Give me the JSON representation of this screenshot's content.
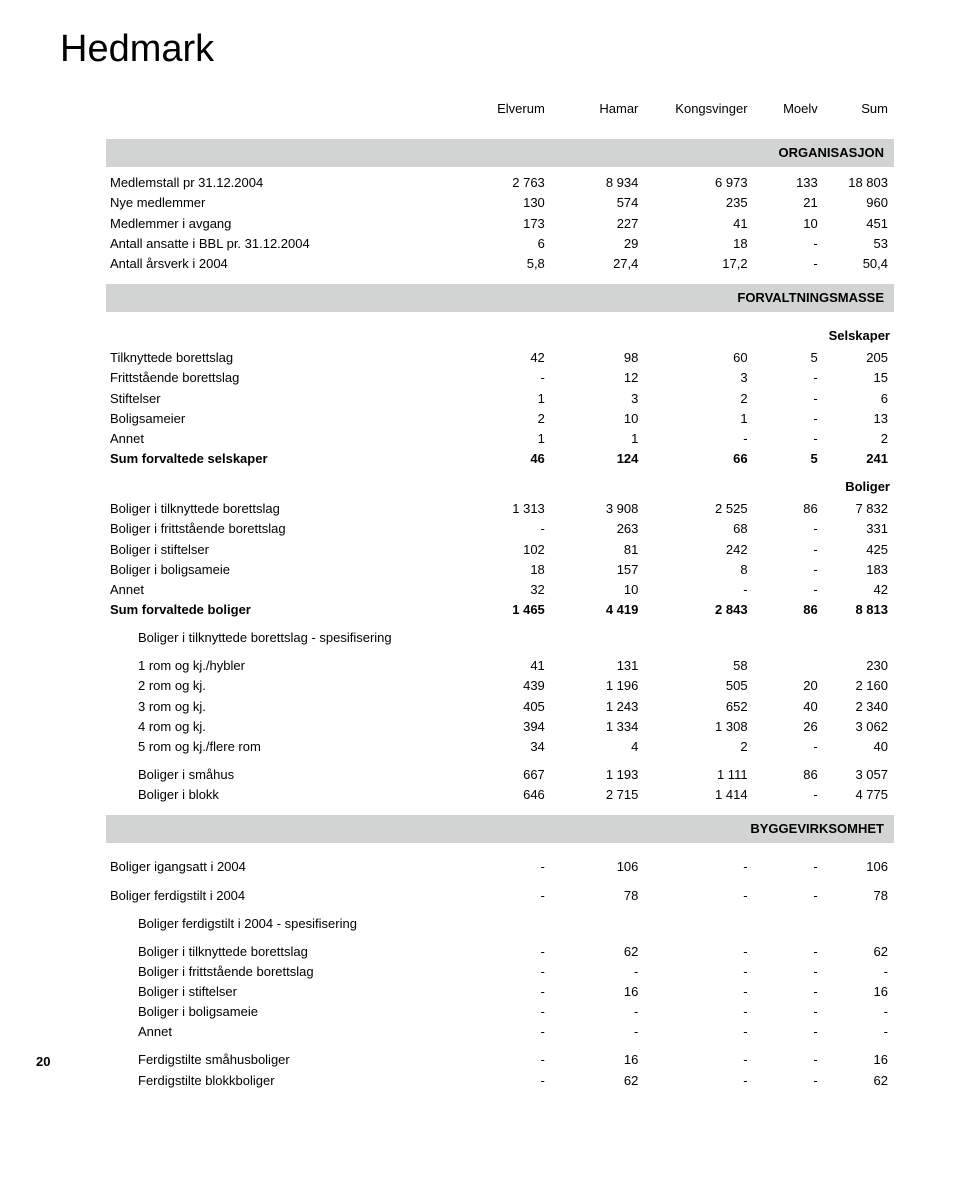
{
  "page_title": "Hedmark",
  "page_number": "20",
  "columns": [
    "Elverum",
    "Hamar",
    "Kongsvinger",
    "Moelv",
    "Sum"
  ],
  "sections": {
    "org": {
      "title": "ORGANISASJON"
    },
    "forv": {
      "title": "FORVALTNINGSMASSE"
    },
    "bygg": {
      "title": "BYGGEVIRKSOMHET"
    }
  },
  "sub": {
    "selskaper": "Selskaper",
    "boliger": "Boliger",
    "spes_tilk": "Boliger i tilknyttede borettslag - spesifisering",
    "spes_ferd": "Boliger ferdigstilt i 2004 - spesifisering"
  },
  "rows": {
    "medlemstall": {
      "l": "Medlemstall pr 31.12.2004",
      "v": [
        "2 763",
        "8 934",
        "6 973",
        "133",
        "18 803"
      ]
    },
    "nye_medl": {
      "l": "Nye medlemmer",
      "v": [
        "130",
        "574",
        "235",
        "21",
        "960"
      ]
    },
    "medl_avgang": {
      "l": "Medlemmer i avgang",
      "v": [
        "173",
        "227",
        "41",
        "10",
        "451"
      ]
    },
    "ansatte": {
      "l": "Antall ansatte i BBL pr. 31.12.2004",
      "v": [
        "6",
        "29",
        "18",
        "-",
        "53"
      ]
    },
    "arsverk": {
      "l": "Antall årsverk i 2004",
      "v": [
        "5,8",
        "27,4",
        "17,2",
        "-",
        "50,4"
      ]
    },
    "tilk_bl": {
      "l": "Tilknyttede borettslag",
      "v": [
        "42",
        "98",
        "60",
        "5",
        "205"
      ]
    },
    "fritt_bl": {
      "l": "Frittstående borettslag",
      "v": [
        "-",
        "12",
        "3",
        "-",
        "15"
      ]
    },
    "stift": {
      "l": "Stiftelser",
      "v": [
        "1",
        "3",
        "2",
        "-",
        "6"
      ]
    },
    "boligsameier": {
      "l": "Boligsameier",
      "v": [
        "2",
        "10",
        "1",
        "-",
        "13"
      ]
    },
    "annet_s": {
      "l": "Annet",
      "v": [
        "1",
        "1",
        "-",
        "-",
        "2"
      ]
    },
    "sum_selsk": {
      "l": "Sum forvaltede selskaper",
      "v": [
        "46",
        "124",
        "66",
        "5",
        "241"
      ]
    },
    "b_tilk": {
      "l": "Boliger i tilknyttede borettslag",
      "v": [
        "1 313",
        "3 908",
        "2 525",
        "86",
        "7 832"
      ]
    },
    "b_fritt": {
      "l": "Boliger i frittstående borettslag",
      "v": [
        "-",
        "263",
        "68",
        "-",
        "331"
      ]
    },
    "b_stift": {
      "l": "Boliger i stiftelser",
      "v": [
        "102",
        "81",
        "242",
        "-",
        "425"
      ]
    },
    "b_sameie": {
      "l": "Boliger i boligsameie",
      "v": [
        "18",
        "157",
        "8",
        "-",
        "183"
      ]
    },
    "b_annet": {
      "l": "Annet",
      "v": [
        "32",
        "10",
        "-",
        "-",
        "42"
      ]
    },
    "sum_boliger": {
      "l": "Sum forvaltede boliger",
      "v": [
        "1 465",
        "4 419",
        "2 843",
        "86",
        "8 813"
      ]
    },
    "r1": {
      "l": "1 rom og kj./hybler",
      "v": [
        "41",
        "131",
        "58",
        "",
        "230"
      ]
    },
    "r2": {
      "l": "2 rom og kj.",
      "v": [
        "439",
        "1 196",
        "505",
        "20",
        "2 160"
      ]
    },
    "r3": {
      "l": "3 rom og kj.",
      "v": [
        "405",
        "1 243",
        "652",
        "40",
        "2 340"
      ]
    },
    "r4": {
      "l": "4 rom og kj.",
      "v": [
        "394",
        "1 334",
        "1 308",
        "26",
        "3 062"
      ]
    },
    "r5": {
      "l": "5 rom og kj./flere rom",
      "v": [
        "34",
        "4",
        "2",
        "-",
        "40"
      ]
    },
    "smahus": {
      "l": "Boliger i småhus",
      "v": [
        "667",
        "1 193",
        "1 111",
        "86",
        "3 057"
      ]
    },
    "blokk": {
      "l": "Boliger i blokk",
      "v": [
        "646",
        "2 715",
        "1 414",
        "-",
        "4 775"
      ]
    },
    "igang": {
      "l": "Boliger igangsatt i 2004",
      "v": [
        "-",
        "106",
        "-",
        "-",
        "106"
      ]
    },
    "ferdig": {
      "l": "Boliger ferdigstilt i 2004",
      "v": [
        "-",
        "78",
        "-",
        "-",
        "78"
      ]
    },
    "f_tilk": {
      "l": "Boliger i tilknyttede borettslag",
      "v": [
        "-",
        "62",
        "-",
        "-",
        "62"
      ]
    },
    "f_fritt": {
      "l": "Boliger i frittstående borettslag",
      "v": [
        "-",
        "-",
        "-",
        "-",
        "-"
      ]
    },
    "f_stift": {
      "l": "Boliger i stiftelser",
      "v": [
        "-",
        "16",
        "-",
        "-",
        "16"
      ]
    },
    "f_sameie": {
      "l": "Boliger i boligsameie",
      "v": [
        "-",
        "-",
        "-",
        "-",
        "-"
      ]
    },
    "f_annet": {
      "l": "Annet",
      "v": [
        "-",
        "-",
        "-",
        "-",
        "-"
      ]
    },
    "f_smahus": {
      "l": "Ferdigstilte småhusboliger",
      "v": [
        "-",
        "16",
        "-",
        "-",
        "16"
      ]
    },
    "f_blokk": {
      "l": "Ferdigstilte blokkboliger",
      "v": [
        "-",
        "62",
        "-",
        "-",
        "62"
      ]
    }
  }
}
